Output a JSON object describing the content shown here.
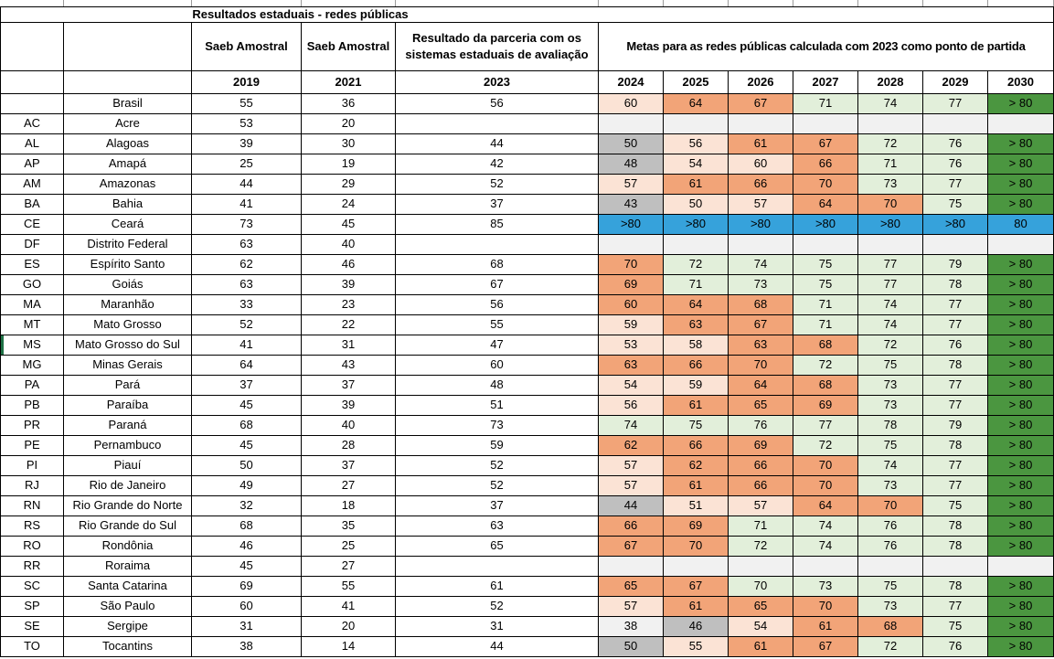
{
  "title": "Resultados estaduais - redes públicas",
  "headers": {
    "saeb_amostral_1": "Saeb Amostral",
    "saeb_amostral_2": "Saeb Amostral",
    "parceria": "Resultado da parceria com os sistemas estaduais de avaliação",
    "metas": "Metas para as redes públicas calculada com 2023 como ponto de partida",
    "years": [
      "2019",
      "2021",
      "2023",
      "2024",
      "2025",
      "2026",
      "2027",
      "2028",
      "2029",
      "2030"
    ]
  },
  "colors": {
    "headerblue": "#8FD1F0",
    "peach": "#FBE3D5",
    "orange": "#F2A478",
    "green": "#E2EFDA",
    "dgreen": "#4B9640",
    "gray": "#BFBFBF",
    "lgray": "#F1F1F1",
    "blue": "#36A2DB",
    "missing": "#000000"
  },
  "rows": [
    {
      "code": "",
      "name": "Brasil",
      "saeb_2019": "55",
      "saeb_2021": "36",
      "result_2023": "56",
      "metas": [
        [
          "60",
          "peach"
        ],
        [
          "64",
          "orange"
        ],
        [
          "67",
          "orange"
        ],
        [
          "71",
          "green"
        ],
        [
          "74",
          "green"
        ],
        [
          "77",
          "green"
        ],
        [
          "> 80",
          "dgreen"
        ]
      ]
    },
    {
      "code": "AC",
      "name": "Acre",
      "saeb_2019": "53",
      "saeb_2021": "20",
      "result_2023": null,
      "metas": [
        [
          "",
          "lgray"
        ],
        [
          "",
          "lgray"
        ],
        [
          "",
          "lgray"
        ],
        [
          "",
          "lgray"
        ],
        [
          "",
          "lgray"
        ],
        [
          "",
          "lgray"
        ],
        [
          "",
          "lgray"
        ]
      ]
    },
    {
      "code": "AL",
      "name": "Alagoas",
      "saeb_2019": "39",
      "saeb_2021": "30",
      "result_2023": "44",
      "metas": [
        [
          "50",
          "gray"
        ],
        [
          "56",
          "peach"
        ],
        [
          "61",
          "orange"
        ],
        [
          "67",
          "orange"
        ],
        [
          "72",
          "green"
        ],
        [
          "76",
          "green"
        ],
        [
          "> 80",
          "dgreen"
        ]
      ]
    },
    {
      "code": "AP",
      "name": "Amapá",
      "saeb_2019": "25",
      "saeb_2021": "19",
      "result_2023": "42",
      "metas": [
        [
          "48",
          "gray"
        ],
        [
          "54",
          "peach"
        ],
        [
          "60",
          "peach"
        ],
        [
          "66",
          "orange"
        ],
        [
          "71",
          "green"
        ],
        [
          "76",
          "green"
        ],
        [
          "> 80",
          "dgreen"
        ]
      ]
    },
    {
      "code": "AM",
      "name": "Amazonas",
      "saeb_2019": "44",
      "saeb_2021": "29",
      "result_2023": "52",
      "metas": [
        [
          "57",
          "peach"
        ],
        [
          "61",
          "orange"
        ],
        [
          "66",
          "orange"
        ],
        [
          "70",
          "orange"
        ],
        [
          "73",
          "green"
        ],
        [
          "77",
          "green"
        ],
        [
          "> 80",
          "dgreen"
        ]
      ]
    },
    {
      "code": "BA",
      "name": "Bahia",
      "saeb_2019": "41",
      "saeb_2021": "24",
      "result_2023": "37",
      "metas": [
        [
          "43",
          "gray"
        ],
        [
          "50",
          "peach"
        ],
        [
          "57",
          "peach"
        ],
        [
          "64",
          "orange"
        ],
        [
          "70",
          "orange"
        ],
        [
          "75",
          "green"
        ],
        [
          "> 80",
          "dgreen"
        ]
      ]
    },
    {
      "code": "CE",
      "name": "Ceará",
      "saeb_2019": "73",
      "saeb_2021": "45",
      "result_2023": "85",
      "metas": [
        [
          ">80",
          "blue"
        ],
        [
          ">80",
          "blue"
        ],
        [
          ">80",
          "blue"
        ],
        [
          ">80",
          "blue"
        ],
        [
          ">80",
          "blue"
        ],
        [
          ">80",
          "blue"
        ],
        [
          "80",
          "blue"
        ]
      ]
    },
    {
      "code": "DF",
      "name": "Distrito Federal",
      "saeb_2019": "63",
      "saeb_2021": "40",
      "result_2023": null,
      "metas": [
        [
          "",
          "lgray"
        ],
        [
          "",
          "lgray"
        ],
        [
          "",
          "lgray"
        ],
        [
          "",
          "lgray"
        ],
        [
          "",
          "lgray"
        ],
        [
          "",
          "lgray"
        ],
        [
          "",
          "lgray"
        ]
      ]
    },
    {
      "code": "ES",
      "name": "Espírito Santo",
      "saeb_2019": "62",
      "saeb_2021": "46",
      "result_2023": "68",
      "metas": [
        [
          "70",
          "orange"
        ],
        [
          "72",
          "green"
        ],
        [
          "74",
          "green"
        ],
        [
          "75",
          "green"
        ],
        [
          "77",
          "green"
        ],
        [
          "79",
          "green"
        ],
        [
          "> 80",
          "dgreen"
        ]
      ]
    },
    {
      "code": "GO",
      "name": "Goiás",
      "saeb_2019": "63",
      "saeb_2021": "39",
      "result_2023": "67",
      "metas": [
        [
          "69",
          "orange"
        ],
        [
          "71",
          "green"
        ],
        [
          "73",
          "green"
        ],
        [
          "75",
          "green"
        ],
        [
          "77",
          "green"
        ],
        [
          "78",
          "green"
        ],
        [
          "> 80",
          "dgreen"
        ]
      ]
    },
    {
      "code": "MA",
      "name": "Maranhão",
      "saeb_2019": "33",
      "saeb_2021": "23",
      "result_2023": "56",
      "metas": [
        [
          "60",
          "orange"
        ],
        [
          "64",
          "orange"
        ],
        [
          "68",
          "orange"
        ],
        [
          "71",
          "green"
        ],
        [
          "74",
          "green"
        ],
        [
          "77",
          "green"
        ],
        [
          "> 80",
          "dgreen"
        ]
      ]
    },
    {
      "code": "MT",
      "name": "Mato Grosso",
      "saeb_2019": "52",
      "saeb_2021": "22",
      "result_2023": "55",
      "metas": [
        [
          "59",
          "peach"
        ],
        [
          "63",
          "orange"
        ],
        [
          "67",
          "orange"
        ],
        [
          "71",
          "green"
        ],
        [
          "74",
          "green"
        ],
        [
          "77",
          "green"
        ],
        [
          "> 80",
          "dgreen"
        ]
      ]
    },
    {
      "code": "MS",
      "name": "Mato Grosso do Sul",
      "saeb_2019": "41",
      "saeb_2021": "31",
      "result_2023": "47",
      "marked": true,
      "metas": [
        [
          "53",
          "peach"
        ],
        [
          "58",
          "peach"
        ],
        [
          "63",
          "orange"
        ],
        [
          "68",
          "orange"
        ],
        [
          "72",
          "green"
        ],
        [
          "76",
          "green"
        ],
        [
          "> 80",
          "dgreen"
        ]
      ]
    },
    {
      "code": "MG",
      "name": "Minas Gerais",
      "saeb_2019": "64",
      "saeb_2021": "43",
      "result_2023": "60",
      "metas": [
        [
          "63",
          "orange"
        ],
        [
          "66",
          "orange"
        ],
        [
          "70",
          "orange"
        ],
        [
          "72",
          "green"
        ],
        [
          "75",
          "green"
        ],
        [
          "78",
          "green"
        ],
        [
          "> 80",
          "dgreen"
        ]
      ]
    },
    {
      "code": "PA",
      "name": "Pará",
      "saeb_2019": "37",
      "saeb_2021": "37",
      "result_2023": "48",
      "metas": [
        [
          "54",
          "peach"
        ],
        [
          "59",
          "peach"
        ],
        [
          "64",
          "orange"
        ],
        [
          "68",
          "orange"
        ],
        [
          "73",
          "green"
        ],
        [
          "77",
          "green"
        ],
        [
          "> 80",
          "dgreen"
        ]
      ]
    },
    {
      "code": "PB",
      "name": "Paraíba",
      "saeb_2019": "45",
      "saeb_2021": "39",
      "result_2023": "51",
      "metas": [
        [
          "56",
          "peach"
        ],
        [
          "61",
          "orange"
        ],
        [
          "65",
          "orange"
        ],
        [
          "69",
          "orange"
        ],
        [
          "73",
          "green"
        ],
        [
          "77",
          "green"
        ],
        [
          "> 80",
          "dgreen"
        ]
      ]
    },
    {
      "code": "PR",
      "name": "Paraná",
      "saeb_2019": "68",
      "saeb_2021": "40",
      "result_2023": "73",
      "metas": [
        [
          "74",
          "green"
        ],
        [
          "75",
          "green"
        ],
        [
          "76",
          "green"
        ],
        [
          "77",
          "green"
        ],
        [
          "78",
          "green"
        ],
        [
          "79",
          "green"
        ],
        [
          "> 80",
          "dgreen"
        ]
      ]
    },
    {
      "code": "PE",
      "name": "Pernambuco",
      "saeb_2019": "45",
      "saeb_2021": "28",
      "result_2023": "59",
      "metas": [
        [
          "62",
          "orange"
        ],
        [
          "66",
          "orange"
        ],
        [
          "69",
          "orange"
        ],
        [
          "72",
          "green"
        ],
        [
          "75",
          "green"
        ],
        [
          "78",
          "green"
        ],
        [
          "> 80",
          "dgreen"
        ]
      ]
    },
    {
      "code": "PI",
      "name": "Piauí",
      "saeb_2019": "50",
      "saeb_2021": "37",
      "result_2023": "52",
      "metas": [
        [
          "57",
          "peach"
        ],
        [
          "62",
          "orange"
        ],
        [
          "66",
          "orange"
        ],
        [
          "70",
          "orange"
        ],
        [
          "74",
          "green"
        ],
        [
          "77",
          "green"
        ],
        [
          "> 80",
          "dgreen"
        ]
      ]
    },
    {
      "code": "RJ",
      "name": "Rio de Janeiro",
      "saeb_2019": "49",
      "saeb_2021": "27",
      "result_2023": "52",
      "metas": [
        [
          "57",
          "peach"
        ],
        [
          "61",
          "orange"
        ],
        [
          "66",
          "orange"
        ],
        [
          "70",
          "orange"
        ],
        [
          "73",
          "green"
        ],
        [
          "77",
          "green"
        ],
        [
          "> 80",
          "dgreen"
        ]
      ]
    },
    {
      "code": "RN",
      "name": "Rio Grande do Norte",
      "saeb_2019": "32",
      "saeb_2021": "18",
      "result_2023": "37",
      "metas": [
        [
          "44",
          "gray"
        ],
        [
          "51",
          "peach"
        ],
        [
          "57",
          "peach"
        ],
        [
          "64",
          "orange"
        ],
        [
          "70",
          "orange"
        ],
        [
          "75",
          "green"
        ],
        [
          "> 80",
          "dgreen"
        ]
      ]
    },
    {
      "code": "RS",
      "name": "Rio Grande do Sul",
      "saeb_2019": "68",
      "saeb_2021": "35",
      "result_2023": "63",
      "metas": [
        [
          "66",
          "orange"
        ],
        [
          "69",
          "orange"
        ],
        [
          "71",
          "green"
        ],
        [
          "74",
          "green"
        ],
        [
          "76",
          "green"
        ],
        [
          "78",
          "green"
        ],
        [
          "> 80",
          "dgreen"
        ]
      ]
    },
    {
      "code": "RO",
      "name": "Rondônia",
      "saeb_2019": "46",
      "saeb_2021": "25",
      "result_2023": "65",
      "metas": [
        [
          "67",
          "orange"
        ],
        [
          "70",
          "orange"
        ],
        [
          "72",
          "green"
        ],
        [
          "74",
          "green"
        ],
        [
          "76",
          "green"
        ],
        [
          "78",
          "green"
        ],
        [
          "> 80",
          "dgreen"
        ]
      ]
    },
    {
      "code": "RR",
      "name": "Roraima",
      "saeb_2019": "45",
      "saeb_2021": "27",
      "result_2023": null,
      "metas": [
        [
          "",
          "lgray"
        ],
        [
          "",
          "lgray"
        ],
        [
          "",
          "lgray"
        ],
        [
          "",
          "lgray"
        ],
        [
          "",
          "lgray"
        ],
        [
          "",
          "lgray"
        ],
        [
          "",
          "lgray"
        ]
      ]
    },
    {
      "code": "SC",
      "name": "Santa Catarina",
      "saeb_2019": "69",
      "saeb_2021": "55",
      "result_2023": "61",
      "metas": [
        [
          "65",
          "orange"
        ],
        [
          "67",
          "orange"
        ],
        [
          "70",
          "green"
        ],
        [
          "73",
          "green"
        ],
        [
          "75",
          "green"
        ],
        [
          "78",
          "green"
        ],
        [
          "> 80",
          "dgreen"
        ]
      ]
    },
    {
      "code": "SP",
      "name": "São Paulo",
      "saeb_2019": "60",
      "saeb_2021": "41",
      "result_2023": "52",
      "metas": [
        [
          "57",
          "peach"
        ],
        [
          "61",
          "orange"
        ],
        [
          "65",
          "orange"
        ],
        [
          "70",
          "orange"
        ],
        [
          "73",
          "green"
        ],
        [
          "77",
          "green"
        ],
        [
          "> 80",
          "dgreen"
        ]
      ]
    },
    {
      "code": "SE",
      "name": "Sergipe",
      "saeb_2019": "31",
      "saeb_2021": "20",
      "result_2023": "31",
      "metas": [
        [
          "38",
          "lgray"
        ],
        [
          "46",
          "gray"
        ],
        [
          "54",
          "peach"
        ],
        [
          "61",
          "orange"
        ],
        [
          "68",
          "orange"
        ],
        [
          "75",
          "green"
        ],
        [
          "> 80",
          "dgreen"
        ]
      ]
    },
    {
      "code": "TO",
      "name": "Tocantins",
      "saeb_2019": "38",
      "saeb_2021": "14",
      "result_2023": "44",
      "metas": [
        [
          "50",
          "gray"
        ],
        [
          "55",
          "peach"
        ],
        [
          "61",
          "orange"
        ],
        [
          "67",
          "orange"
        ],
        [
          "72",
          "green"
        ],
        [
          "76",
          "green"
        ],
        [
          "> 80",
          "dgreen"
        ]
      ]
    }
  ]
}
